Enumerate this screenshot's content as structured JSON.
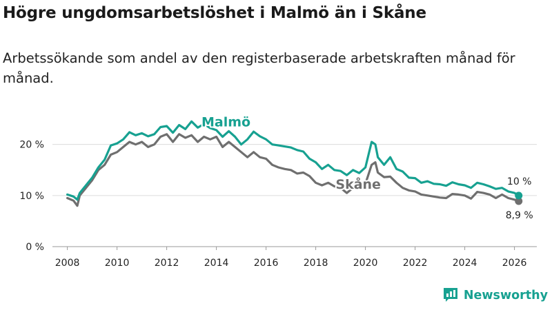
{
  "header": {
    "title": "Högre ungdomsarbetslöshet i Malmö än i Skåne",
    "subtitle": "Arbetssökande som andel av den registerbaserade arbetskraften månad för månad."
  },
  "brand": {
    "name": "Newsworthy",
    "logo_icon": "bar-chart-logo-icon"
  },
  "colors": {
    "malmo": "#17a191",
    "skane": "#6f6f6f",
    "grid": "#dcdcdc",
    "axis": "#999999"
  },
  "chart_data": {
    "type": "line",
    "title": "Högre ungdomsarbetslöshet i Malmö än i Skåne",
    "xlabel": "",
    "ylabel": "",
    "xlim": [
      2007.4,
      2026.9
    ],
    "ylim": [
      0,
      24
    ],
    "yticks": [
      0,
      10,
      20
    ],
    "ytick_labels": [
      "0 %",
      "10 %",
      "20 %"
    ],
    "xticks": [
      "2008",
      "2010",
      "2012",
      "2014",
      "2016",
      "2018",
      "2020",
      "2022",
      "2024",
      "2026"
    ],
    "series": [
      {
        "name": "Malmö",
        "end_label": "10 %",
        "x": [
          2008.0,
          2008.25,
          2008.4,
          2008.5,
          2008.75,
          2009.0,
          2009.25,
          2009.5,
          2009.75,
          2010.0,
          2010.25,
          2010.5,
          2010.75,
          2011.0,
          2011.25,
          2011.5,
          2011.75,
          2012.0,
          2012.25,
          2012.5,
          2012.75,
          2013.0,
          2013.25,
          2013.5,
          2013.75,
          2014.0,
          2014.25,
          2014.5,
          2014.75,
          2015.0,
          2015.25,
          2015.5,
          2015.75,
          2016.0,
          2016.25,
          2016.5,
          2016.75,
          2017.0,
          2017.25,
          2017.5,
          2017.75,
          2018.0,
          2018.25,
          2018.5,
          2018.75,
          2019.0,
          2019.25,
          2019.5,
          2019.75,
          2020.0,
          2020.25,
          2020.4,
          2020.5,
          2020.75,
          2021.0,
          2021.25,
          2021.5,
          2021.75,
          2022.0,
          2022.25,
          2022.5,
          2022.75,
          2023.0,
          2023.25,
          2023.5,
          2023.75,
          2024.0,
          2024.25,
          2024.5,
          2024.75,
          2025.0,
          2025.25,
          2025.5,
          2025.75,
          2026.0,
          2026.17
        ],
        "values": [
          10.2,
          9.8,
          9.2,
          10.5,
          12.0,
          13.5,
          15.5,
          17.0,
          19.8,
          20.2,
          21.0,
          22.4,
          21.8,
          22.2,
          21.6,
          22.0,
          23.4,
          23.6,
          22.3,
          23.8,
          23.0,
          24.5,
          23.3,
          24.0,
          23.2,
          22.8,
          21.5,
          22.6,
          21.5,
          20.0,
          21.0,
          22.5,
          21.6,
          21.0,
          20.0,
          19.8,
          19.6,
          19.4,
          18.9,
          18.6,
          17.2,
          16.5,
          15.2,
          16.0,
          15.0,
          14.8,
          14.0,
          15.0,
          14.4,
          15.5,
          20.5,
          20.0,
          17.5,
          16.0,
          17.5,
          15.2,
          14.7,
          13.5,
          13.4,
          12.5,
          12.8,
          12.3,
          12.2,
          11.9,
          12.6,
          12.2,
          12.0,
          11.5,
          12.5,
          12.2,
          11.8,
          11.3,
          11.5,
          10.8,
          10.5,
          10.0
        ]
      },
      {
        "name": "Skåne",
        "end_label": "8,9 %",
        "x": [
          2008.0,
          2008.25,
          2008.4,
          2008.5,
          2008.75,
          2009.0,
          2009.25,
          2009.5,
          2009.75,
          2010.0,
          2010.25,
          2010.5,
          2010.75,
          2011.0,
          2011.25,
          2011.5,
          2011.75,
          2012.0,
          2012.25,
          2012.5,
          2012.75,
          2013.0,
          2013.25,
          2013.5,
          2013.75,
          2014.0,
          2014.25,
          2014.5,
          2014.75,
          2015.0,
          2015.25,
          2015.5,
          2015.75,
          2016.0,
          2016.25,
          2016.5,
          2016.75,
          2017.0,
          2017.25,
          2017.5,
          2017.75,
          2018.0,
          2018.25,
          2018.5,
          2018.75,
          2019.0,
          2019.25,
          2019.5,
          2019.75,
          2020.0,
          2020.25,
          2020.4,
          2020.5,
          2020.75,
          2021.0,
          2021.25,
          2021.5,
          2021.75,
          2022.0,
          2022.25,
          2022.5,
          2022.75,
          2023.0,
          2023.25,
          2023.5,
          2023.75,
          2024.0,
          2024.25,
          2024.5,
          2024.75,
          2025.0,
          2025.25,
          2025.5,
          2025.75,
          2026.0,
          2026.17
        ],
        "values": [
          9.5,
          9.0,
          8.0,
          10.0,
          11.5,
          13.0,
          15.0,
          16.0,
          18.0,
          18.5,
          19.5,
          20.5,
          20.0,
          20.5,
          19.5,
          20.0,
          21.5,
          22.0,
          20.5,
          22.0,
          21.3,
          21.8,
          20.5,
          21.5,
          21.0,
          21.5,
          19.5,
          20.5,
          19.5,
          18.5,
          17.5,
          18.5,
          17.5,
          17.2,
          16.0,
          15.5,
          15.2,
          15.0,
          14.3,
          14.5,
          13.8,
          12.5,
          12.0,
          12.5,
          11.8,
          11.5,
          10.5,
          11.5,
          11.8,
          12.3,
          16.0,
          16.5,
          14.5,
          13.6,
          13.7,
          12.5,
          11.5,
          11.0,
          10.8,
          10.2,
          10.0,
          9.8,
          9.6,
          9.5,
          10.3,
          10.2,
          10.0,
          9.4,
          10.7,
          10.5,
          10.2,
          9.5,
          10.2,
          9.5,
          9.2,
          8.9
        ]
      }
    ]
  }
}
